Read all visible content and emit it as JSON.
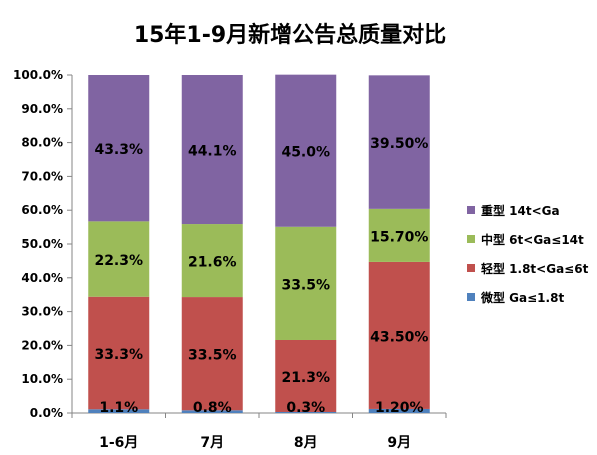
{
  "chart_data": {
    "type": "bar",
    "stacked": true,
    "percent": true,
    "title": "15年1-9月新增公告总质量对比",
    "categories": [
      "1-6月",
      "7月",
      "8月",
      "9月"
    ],
    "ylim": [
      0,
      100
    ],
    "yticks": [
      "0.0%",
      "10.0%",
      "20.0%",
      "30.0%",
      "40.0%",
      "50.0%",
      "60.0%",
      "70.0%",
      "80.0%",
      "90.0%",
      "100.0%"
    ],
    "grid": false,
    "legend_position": "right",
    "series": [
      {
        "name": "微型 Ga≤1.8t",
        "color": "#4f81bd",
        "values": [
          1.1,
          0.8,
          0.3,
          1.2
        ],
        "labels": [
          "1.1%",
          "0.8%",
          "0.3%",
          "1.20%"
        ]
      },
      {
        "name": "轻型 1.8t<Ga≤6t",
        "color": "#c0504d",
        "values": [
          33.3,
          33.5,
          21.3,
          43.5
        ],
        "labels": [
          "33.3%",
          "33.5%",
          "21.3%",
          "43.50%"
        ]
      },
      {
        "name": "中型 6t<Ga≤14t",
        "color": "#9bbb59",
        "values": [
          22.3,
          21.6,
          33.5,
          15.7
        ],
        "labels": [
          "22.3%",
          "21.6%",
          "33.5%",
          "15.70%"
        ]
      },
      {
        "name": "重型 14t<Ga",
        "color": "#8064a2",
        "values": [
          43.3,
          44.1,
          45.0,
          39.5
        ],
        "labels": [
          "43.3%",
          "44.1%",
          "45.0%",
          "39.50%"
        ]
      }
    ]
  }
}
